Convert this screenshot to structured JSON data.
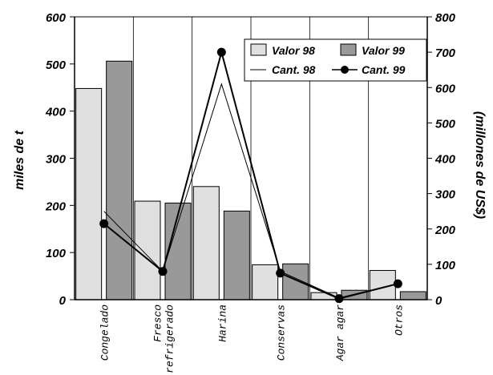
{
  "chart_data": {
    "type": "bar",
    "categories": [
      [
        "Congelado"
      ],
      [
        "Fresco",
        "refrigerado"
      ],
      [
        "Harina"
      ],
      [
        "Conservas"
      ],
      [
        "Agar agar"
      ],
      [
        "Otros"
      ]
    ],
    "series": [
      {
        "name": "Valor 98",
        "kind": "bar",
        "axis": "left",
        "color": "#e0e0e0",
        "values": [
          448,
          209,
          240,
          74,
          15,
          62
        ]
      },
      {
        "name": "Valor 99",
        "kind": "bar",
        "axis": "left",
        "color": "#999999",
        "values": [
          506,
          205,
          188,
          76,
          20,
          17
        ]
      },
      {
        "name": "Cant. 98",
        "kind": "line",
        "axis": "right",
        "color": "#000000",
        "values": [
          250,
          80,
          610,
          80,
          5,
          45
        ]
      },
      {
        "name": "Cant. 99",
        "kind": "line-marker",
        "axis": "right",
        "color": "#000000",
        "values": [
          215,
          80,
          700,
          75,
          3,
          45
        ]
      }
    ],
    "ylabel": "miles de t",
    "y2label": "(millones de US$)",
    "ylim": [
      0,
      600
    ],
    "y2lim": [
      0,
      800
    ],
    "yticks": [
      "0",
      "100",
      "200",
      "300",
      "400",
      "500",
      "600"
    ],
    "y2ticks": [
      "0",
      "100",
      "200",
      "300",
      "400",
      "500",
      "600",
      "700",
      "800"
    ],
    "grid": "vertical",
    "legend": "top-right"
  }
}
